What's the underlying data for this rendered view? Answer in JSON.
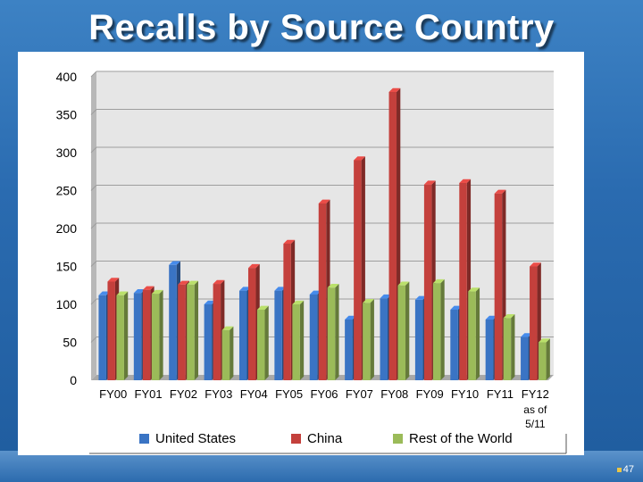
{
  "slide": {
    "title": "Recalls by Source Country",
    "page_number": "47"
  },
  "chart_data": {
    "type": "bar",
    "categories": [
      "FY00",
      "FY01",
      "FY02",
      "FY03",
      "FY04",
      "FY05",
      "FY06",
      "FY07",
      "FY08",
      "FY09",
      "FY10",
      "FY11",
      "FY12 as of 5/11"
    ],
    "category_lines": [
      [
        "FY00"
      ],
      [
        "FY01"
      ],
      [
        "FY02"
      ],
      [
        "FY03"
      ],
      [
        "FY04"
      ],
      [
        "FY05"
      ],
      [
        "FY06"
      ],
      [
        "FY07"
      ],
      [
        "FY08"
      ],
      [
        "FY09"
      ],
      [
        "FY10"
      ],
      [
        "FY11"
      ],
      [
        "FY12",
        "as of",
        "5/11"
      ]
    ],
    "series": [
      {
        "name": "United States",
        "color": "#3a74c4",
        "values": [
          112,
          115,
          152,
          100,
          118,
          118,
          113,
          80,
          108,
          106,
          93,
          80,
          57
        ]
      },
      {
        "name": "China",
        "color": "#c4403c",
        "values": [
          130,
          119,
          126,
          127,
          148,
          180,
          233,
          290,
          380,
          258,
          260,
          246,
          150
        ]
      },
      {
        "name": "Rest of the World",
        "color": "#9bbb59",
        "values": [
          112,
          114,
          126,
          66,
          93,
          100,
          122,
          102,
          125,
          128,
          117,
          82,
          50
        ]
      }
    ],
    "ylim": [
      0,
      400
    ],
    "yticks": [
      0,
      50,
      100,
      150,
      200,
      250,
      300,
      350,
      400
    ],
    "grid": true,
    "legend_position": "bottom"
  }
}
